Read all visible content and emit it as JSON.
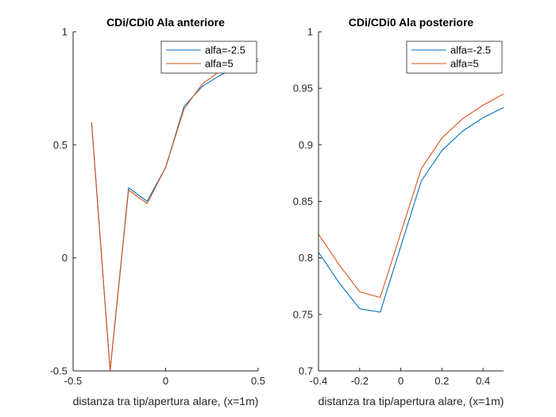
{
  "chart_data": [
    {
      "type": "line",
      "title": "CDi/CDi0 Ala anteriore",
      "xlabel": "distanza tra tip/apertura alare, (x=1m)",
      "ylabel": "",
      "xlim": [
        -0.5,
        0.5
      ],
      "ylim": [
        -0.5,
        1
      ],
      "xticks": [
        -0.5,
        0,
        0.5
      ],
      "xtick_labels": [
        "-0.5",
        "0",
        "0.5"
      ],
      "yticks": [
        -0.5,
        0,
        0.5,
        1
      ],
      "ytick_labels": [
        "-0.5",
        "0",
        "0.5",
        "1"
      ],
      "grid": false,
      "legend_position": "top-right",
      "series": [
        {
          "name": "alfa=-2.5",
          "color": "#0072BD",
          "x": [
            -0.4,
            -0.3,
            -0.2,
            -0.1,
            0.0,
            0.1,
            0.2,
            0.3,
            0.4,
            0.5
          ],
          "y": [
            0.6,
            -0.5,
            0.31,
            0.25,
            0.4,
            0.67,
            0.76,
            0.81,
            0.85,
            0.87
          ]
        },
        {
          "name": "alfa=5",
          "color": "#D95319",
          "x": [
            -0.4,
            -0.3,
            -0.2,
            -0.1,
            0.0,
            0.1,
            0.2,
            0.3,
            0.4,
            0.5
          ],
          "y": [
            0.6,
            -0.5,
            0.3,
            0.24,
            0.4,
            0.66,
            0.77,
            0.83,
            0.86,
            0.88
          ]
        }
      ]
    },
    {
      "type": "line",
      "title": "CDi/CDi0 Ala posteriore",
      "xlabel": "distanza tra tip/apertura alare, (x=1m)",
      "ylabel": "",
      "xlim": [
        -0.4,
        0.5
      ],
      "ylim": [
        0.7,
        1
      ],
      "xticks": [
        -0.4,
        -0.2,
        0,
        0.2,
        0.4
      ],
      "xtick_labels": [
        "-0.4",
        "-0.2",
        "0",
        "0.2",
        "0.4"
      ],
      "yticks": [
        0.7,
        0.75,
        0.8,
        0.85,
        0.9,
        0.95,
        1
      ],
      "ytick_labels": [
        "0.7",
        "0.75",
        "0.8",
        "0.85",
        "0.9",
        "0.95",
        "1"
      ],
      "grid": false,
      "legend_position": "top-right",
      "series": [
        {
          "name": "alfa=-2.5",
          "color": "#0072BD",
          "x": [
            -0.4,
            -0.3,
            -0.2,
            -0.1,
            0.0,
            0.1,
            0.2,
            0.3,
            0.4,
            0.5
          ],
          "y": [
            0.805,
            0.778,
            0.755,
            0.752,
            0.81,
            0.868,
            0.895,
            0.912,
            0.924,
            0.933
          ]
        },
        {
          "name": "alfa=5",
          "color": "#D95319",
          "x": [
            -0.4,
            -0.3,
            -0.2,
            -0.1,
            0.0,
            0.1,
            0.2,
            0.3,
            0.4,
            0.5
          ],
          "y": [
            0.821,
            0.794,
            0.77,
            0.765,
            0.822,
            0.879,
            0.906,
            0.923,
            0.935,
            0.945
          ]
        }
      ]
    }
  ]
}
